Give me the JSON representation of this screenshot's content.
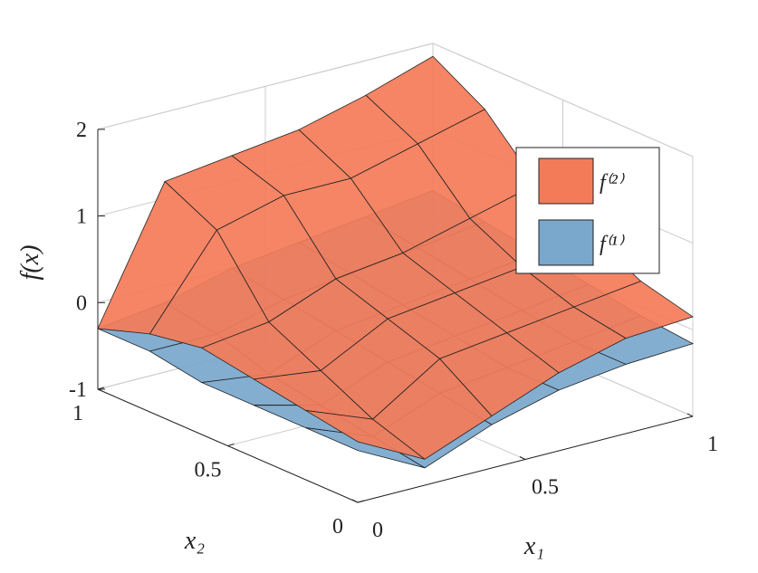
{
  "chart_data": {
    "type": "surface",
    "x_label": "x₁",
    "y_label": "x₂",
    "z_label": "f(x)",
    "x": [
      0,
      0.2,
      0.4,
      0.6,
      0.8,
      1
    ],
    "y": [
      0,
      0.2,
      0.4,
      0.6,
      0.8,
      1
    ],
    "xlim": [
      0,
      1
    ],
    "ylim": [
      0,
      1
    ],
    "zlim": [
      -1,
      2
    ],
    "xticks": [
      0,
      0.5,
      1
    ],
    "yticks": [
      0,
      0.5,
      1
    ],
    "zticks": [
      -1,
      0,
      1,
      2
    ],
    "grid": true,
    "legend": "upper right",
    "series": [
      {
        "name": "f⁽²⁾",
        "color": "#f47b58",
        "values": [
          [
            -0.3,
            -0.7,
            -0.4,
            -0.1,
            0.1,
            0.15
          ],
          [
            -0.2,
            -0.5,
            0.0,
            0.1,
            0.2,
            0.3
          ],
          [
            -0.1,
            -0.2,
            0.2,
            0.3,
            0.4,
            0.6
          ],
          [
            0.0,
            0.1,
            0.4,
            0.5,
            0.7,
            0.9
          ],
          [
            -0.1,
            0.9,
            1.1,
            1.1,
            1.3,
            1.5
          ],
          [
            -0.3,
            1.2,
            1.3,
            1.4,
            1.6,
            1.85
          ]
        ]
      },
      {
        "name": "f⁽¹⁾",
        "color": "#7aa7cc",
        "values": [
          [
            -0.4,
            -0.8,
            -0.5,
            -0.3,
            -0.2,
            -0.16
          ],
          [
            -0.4,
            -0.7,
            -0.4,
            -0.3,
            -0.2,
            -0.1
          ],
          [
            -0.4,
            -0.6,
            -0.3,
            -0.2,
            -0.1,
            0.0
          ],
          [
            -0.4,
            -0.5,
            -0.2,
            -0.1,
            0.0,
            0.1
          ],
          [
            -0.3,
            -0.3,
            -0.1,
            0.0,
            0.1,
            0.2
          ],
          [
            -0.3,
            -0.2,
            0.0,
            0.1,
            0.2,
            0.3
          ]
        ]
      }
    ]
  }
}
